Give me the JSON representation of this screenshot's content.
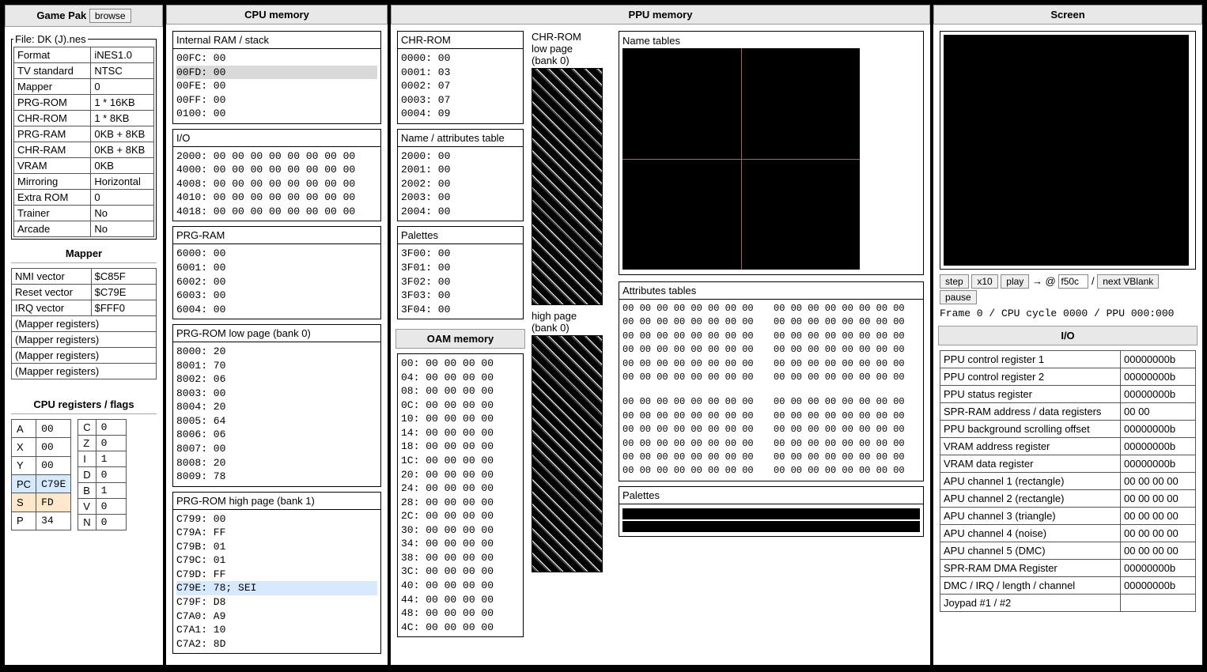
{
  "headers": {
    "gamepak": "Game Pak",
    "browse": "browse",
    "cpumem": "CPU memory",
    "ppumem": "PPU memory",
    "screen": "Screen",
    "oam": "OAM memory",
    "io": "I/O"
  },
  "file": {
    "label": "File:",
    "name": "DK (J).nes",
    "rows": [
      [
        "Format",
        "iNES1.0"
      ],
      [
        "TV standard",
        "NTSC"
      ],
      [
        "Mapper",
        "0"
      ],
      [
        "PRG-ROM",
        "1 * 16KB"
      ],
      [
        "CHR-ROM",
        "1 * 8KB"
      ],
      [
        "PRG-RAM",
        "0KB + 8KB"
      ],
      [
        "CHR-RAM",
        "0KB + 8KB"
      ],
      [
        "VRAM",
        "0KB"
      ],
      [
        "Mirroring",
        "Horizontal"
      ],
      [
        "Extra ROM",
        "0"
      ],
      [
        "Trainer",
        "No"
      ],
      [
        "Arcade",
        "No"
      ]
    ]
  },
  "mapper": {
    "title": "Mapper",
    "rows": [
      [
        "NMI vector",
        "$C85F"
      ],
      [
        "Reset vector",
        "$C79E"
      ],
      [
        "IRQ vector",
        "$FFF0"
      ]
    ],
    "extras": [
      "(Mapper registers)",
      "(Mapper registers)",
      "(Mapper registers)",
      "(Mapper registers)"
    ]
  },
  "cpuRegs": {
    "title": "CPU registers / flags",
    "left": [
      {
        "k": "A",
        "v": "00"
      },
      {
        "k": "X",
        "v": "00"
      },
      {
        "k": "Y",
        "v": "00"
      },
      {
        "k": "PC",
        "v": "C79E",
        "hl": "blue"
      },
      {
        "k": "S",
        "v": "FD",
        "hl": "peach"
      },
      {
        "k": "P",
        "v": "34"
      }
    ],
    "right": [
      {
        "k": "C",
        "v": "0"
      },
      {
        "k": "Z",
        "v": "0"
      },
      {
        "k": "I",
        "v": "1"
      },
      {
        "k": "D",
        "v": "0"
      },
      {
        "k": "B",
        "v": "1"
      },
      {
        "k": "V",
        "v": "0"
      },
      {
        "k": "N",
        "v": "0"
      }
    ]
  },
  "cpumem": {
    "ram": {
      "title": "Internal RAM / stack",
      "lines": [
        "00FC: 00",
        {
          "t": "00FD: 00",
          "hl": "gray"
        },
        "00FE: 00",
        "00FF: 00",
        "0100: 00"
      ]
    },
    "io": {
      "title": "I/O",
      "lines": [
        "2000: 00 00 00 00 00 00 00 00",
        "4000: 00 00 00 00 00 00 00 00",
        "4008: 00 00 00 00 00 00 00 00",
        "4010: 00 00 00 00 00 00 00 00",
        "4018: 00 00 00 00 00 00 00 00"
      ]
    },
    "prgram": {
      "title": "PRG-RAM",
      "lines": [
        "6000: 00",
        "6001: 00",
        "6002: 00",
        "6003: 00",
        "6004: 00"
      ]
    },
    "prglow": {
      "title": "PRG-ROM low page (bank 0)",
      "lines": [
        "8000: 20",
        "8001: 70",
        "8002: 06",
        "8003: 00",
        "8004: 20",
        "8005: 64",
        "8006: 06",
        "8007: 00",
        "8008: 20",
        "8009: 78"
      ]
    },
    "prghigh": {
      "title": "PRG-ROM high page (bank 1)",
      "lines": [
        "C799: 00",
        "C79A: FF",
        "C79B: 01",
        "C79C: 01",
        "C79D: FF",
        {
          "t": "C79E: 78; SEI",
          "hl": "blue"
        },
        "C79F: D8",
        "C7A0: A9",
        "C7A1: 10",
        "C7A2: 8D"
      ]
    }
  },
  "ppumem": {
    "chr": {
      "title": "CHR-ROM",
      "lines": [
        "0000: 00",
        "0001: 03",
        "0002: 07",
        "0003: 07",
        "0004: 09"
      ]
    },
    "nat": {
      "title": "Name / attributes table",
      "lines": [
        "2000: 00",
        "2001: 00",
        "2002: 00",
        "2003: 00",
        "2004: 00"
      ]
    },
    "pal": {
      "title": "Palettes",
      "lines": [
        "3F00: 00",
        "3F01: 00",
        "3F02: 00",
        "3F03: 00",
        "3F04: 00"
      ]
    }
  },
  "oam": {
    "lines": [
      "00: 00 00 00 00",
      "04: 00 00 00 00",
      "08: 00 00 00 00",
      "0C: 00 00 00 00",
      "10: 00 00 00 00",
      "14: 00 00 00 00",
      "18: 00 00 00 00",
      "1C: 00 00 00 00",
      "20: 00 00 00 00",
      "24: 00 00 00 00",
      "28: 00 00 00 00",
      "2C: 00 00 00 00",
      "30: 00 00 00 00",
      "34: 00 00 00 00",
      "38: 00 00 00 00",
      "3C: 00 00 00 00",
      "40: 00 00 00 00",
      "44: 00 00 00 00",
      "48: 00 00 00 00",
      "4C: 00 00 00 00"
    ]
  },
  "chrPreview": {
    "low": "CHR-ROM\nlow page\n(bank 0)",
    "high": "high page\n(bank 0)"
  },
  "nameTables": {
    "title": "Name tables"
  },
  "attrTables": {
    "title": "Attributes tables",
    "row": "00 00 00 00 00 00 00 00",
    "count": 6
  },
  "palettes": {
    "title": "Palettes"
  },
  "screen": {
    "step": "step",
    "x10": "x10",
    "play": "play",
    "arrow": "→ @",
    "slash": "/",
    "nextvb": "next VBlank",
    "pause": "pause",
    "gotoVal": "f50c",
    "status": "Frame 0 / CPU cycle 0000 / PPU 000:000"
  },
  "ioRegs": [
    [
      "PPU control register 1",
      "00000000b"
    ],
    [
      "PPU control register 2",
      "00000000b"
    ],
    [
      "PPU status register",
      "00000000b"
    ],
    [
      "SPR-RAM address / data registers",
      "00 00"
    ],
    [
      "PPU background scrolling offset",
      "00000000b"
    ],
    [
      "VRAM address register",
      "00000000b"
    ],
    [
      "VRAM data register",
      "00000000b"
    ],
    [
      "APU channel 1 (rectangle)",
      "00 00 00 00"
    ],
    [
      "APU channel 2 (rectangle)",
      "00 00 00 00"
    ],
    [
      "APU channel 3 (triangle)",
      "00 00 00 00"
    ],
    [
      "APU channel 4 (noise)",
      "00 00 00 00"
    ],
    [
      "APU channel 5 (DMC)",
      "00 00 00 00"
    ],
    [
      "SPR-RAM DMA Register",
      "00000000b"
    ],
    [
      "DMC / IRQ / length / channel",
      "00000000b"
    ],
    [
      "Joypad #1 / #2",
      ""
    ]
  ]
}
